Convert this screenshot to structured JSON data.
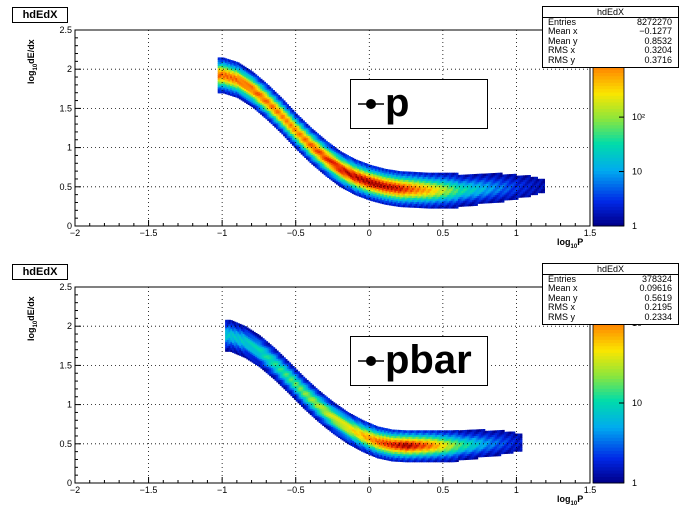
{
  "chart_data": [
    {
      "type": "heatmap",
      "hist_title": "hdEdX",
      "legend_label": "p",
      "xlabel_main": "log",
      "xlabel_sub": "10",
      "xlabel_tail": "P",
      "ylabel_main": "log",
      "ylabel_sub": "10",
      "ylabel_tail": "dE/dx",
      "xlim": [
        -2,
        1.5
      ],
      "ylim": [
        0,
        2.5
      ],
      "x_ticks": [
        "−2",
        "−1.5",
        "−1",
        "−0.5",
        "0",
        "0.5",
        "1",
        "1.5"
      ],
      "y_ticks": [
        "0",
        "0.5",
        "1",
        "1.5",
        "2",
        "2.5"
      ],
      "z_ticks": [
        "1",
        "10",
        "10²",
        "10³"
      ],
      "z_scale": "log",
      "grid": true,
      "stats": {
        "name": "hdEdX",
        "rows": [
          {
            "label": "Entries",
            "value": "8272270"
          },
          {
            "label": "Mean x",
            "value": "−0.1277"
          },
          {
            "label": "Mean y",
            "value": "0.8532"
          },
          {
            "label": "RMS x",
            "value": "0.3204"
          },
          {
            "label": "RMS y",
            "value": "0.3716"
          }
        ]
      },
      "band_center": [
        {
          "x": -1.0,
          "y": 1.92
        },
        {
          "x": -0.9,
          "y": 1.86
        },
        {
          "x": -0.8,
          "y": 1.74
        },
        {
          "x": -0.7,
          "y": 1.58
        },
        {
          "x": -0.6,
          "y": 1.4
        },
        {
          "x": -0.5,
          "y": 1.2
        },
        {
          "x": -0.4,
          "y": 1.02
        },
        {
          "x": -0.3,
          "y": 0.86
        },
        {
          "x": -0.2,
          "y": 0.72
        },
        {
          "x": -0.1,
          "y": 0.62
        },
        {
          "x": 0.0,
          "y": 0.55
        },
        {
          "x": 0.1,
          "y": 0.5
        },
        {
          "x": 0.2,
          "y": 0.47
        },
        {
          "x": 0.3,
          "y": 0.46
        },
        {
          "x": 0.4,
          "y": 0.45
        },
        {
          "x": 0.5,
          "y": 0.45
        },
        {
          "x": 0.6,
          "y": 0.45
        },
        {
          "x": 0.7,
          "y": 0.46
        },
        {
          "x": 0.8,
          "y": 0.47
        },
        {
          "x": 0.9,
          "y": 0.48
        },
        {
          "x": 1.0,
          "y": 0.49
        },
        {
          "x": 1.1,
          "y": 0.5
        }
      ],
      "band_width": 0.1,
      "peak": [
        {
          "x": -0.8,
          "y": 0.85
        },
        {
          "x": -0.5,
          "y": 0.8
        },
        {
          "x": -0.2,
          "y": 0.95
        },
        {
          "x": 0.0,
          "y": 1.0
        },
        {
          "x": 0.2,
          "y": 0.95
        },
        {
          "x": 0.4,
          "y": 0.75
        },
        {
          "x": 0.6,
          "y": 0.45
        },
        {
          "x": 0.8,
          "y": 0.28
        },
        {
          "x": 1.0,
          "y": 0.12
        },
        {
          "x": 1.15,
          "y": 0.05
        }
      ]
    },
    {
      "type": "heatmap",
      "hist_title": "hdEdX",
      "legend_label": "pbar",
      "xlabel_main": "log",
      "xlabel_sub": "10",
      "xlabel_tail": "P",
      "ylabel_main": "log",
      "ylabel_sub": "10",
      "ylabel_tail": "dE/dx",
      "xlim": [
        -2,
        1.5
      ],
      "ylim": [
        0,
        2.5
      ],
      "x_ticks": [
        "−2",
        "−1.5",
        "−1",
        "−0.5",
        "0",
        "0.5",
        "1",
        "1.5"
      ],
      "y_ticks": [
        "0",
        "0.5",
        "1",
        "1.5",
        "2",
        "2.5"
      ],
      "z_ticks": [
        "1",
        "10",
        "10²"
      ],
      "z_scale": "log",
      "grid": true,
      "stats": {
        "name": "hdEdX",
        "rows": [
          {
            "label": "Entries",
            "value": "378324"
          },
          {
            "label": "Mean x",
            "value": "0.09616"
          },
          {
            "label": "Mean y",
            "value": "0.5619"
          },
          {
            "label": "RMS x",
            "value": "0.2195"
          },
          {
            "label": "RMS y",
            "value": "0.2334"
          }
        ]
      },
      "band_center": [
        {
          "x": -0.95,
          "y": 1.88
        },
        {
          "x": -0.85,
          "y": 1.8
        },
        {
          "x": -0.75,
          "y": 1.68
        },
        {
          "x": -0.65,
          "y": 1.52
        },
        {
          "x": -0.55,
          "y": 1.34
        },
        {
          "x": -0.45,
          "y": 1.15
        },
        {
          "x": -0.35,
          "y": 0.98
        },
        {
          "x": -0.25,
          "y": 0.83
        },
        {
          "x": -0.15,
          "y": 0.7
        },
        {
          "x": -0.05,
          "y": 0.6
        },
        {
          "x": 0.05,
          "y": 0.52
        },
        {
          "x": 0.15,
          "y": 0.48
        },
        {
          "x": 0.25,
          "y": 0.47
        },
        {
          "x": 0.35,
          "y": 0.47
        },
        {
          "x": 0.45,
          "y": 0.47
        },
        {
          "x": 0.55,
          "y": 0.47
        },
        {
          "x": 0.65,
          "y": 0.48
        },
        {
          "x": 0.75,
          "y": 0.49
        },
        {
          "x": 0.85,
          "y": 0.5
        },
        {
          "x": 0.95,
          "y": 0.51
        }
      ],
      "band_width": 0.09,
      "peak": [
        {
          "x": -0.9,
          "y": 0.35
        },
        {
          "x": -0.6,
          "y": 0.45
        },
        {
          "x": -0.3,
          "y": 0.6
        },
        {
          "x": -0.1,
          "y": 0.7
        },
        {
          "x": 0.1,
          "y": 0.9
        },
        {
          "x": 0.25,
          "y": 1.0
        },
        {
          "x": 0.4,
          "y": 0.85
        },
        {
          "x": 0.6,
          "y": 0.5
        },
        {
          "x": 0.8,
          "y": 0.25
        },
        {
          "x": 1.0,
          "y": 0.08
        }
      ]
    }
  ]
}
